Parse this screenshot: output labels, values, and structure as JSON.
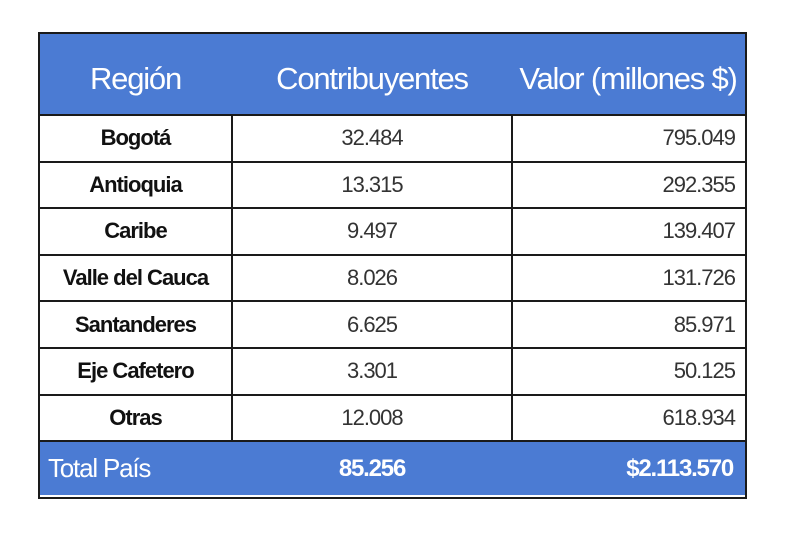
{
  "chart_data": {
    "type": "table",
    "columns": [
      "Región",
      "Contribuyentes",
      "Valor (millones $)"
    ],
    "rows": [
      {
        "region": "Bogotá",
        "contribuyentes": "32.484",
        "valor": "795.049"
      },
      {
        "region": "Antioquia",
        "contribuyentes": "13.315",
        "valor": "292.355"
      },
      {
        "region": "Caribe",
        "contribuyentes": "9.497",
        "valor": "139.407"
      },
      {
        "region": "Valle del Cauca",
        "contribuyentes": "8.026",
        "valor": "131.726"
      },
      {
        "region": "Santanderes",
        "contribuyentes": "6.625",
        "valor": "85.971"
      },
      {
        "region": "Eje Cafetero",
        "contribuyentes": "3.301",
        "valor": "50.125"
      },
      {
        "region": "Otras",
        "contribuyentes": "12.008",
        "valor": "618.934"
      }
    ],
    "total": {
      "label": "Total País",
      "contribuyentes": "85.256",
      "valor": "$2.113.570"
    },
    "colors": {
      "header": "#4b7bd3",
      "header_text": "#ffffff",
      "border": "#1a1a1a"
    }
  }
}
